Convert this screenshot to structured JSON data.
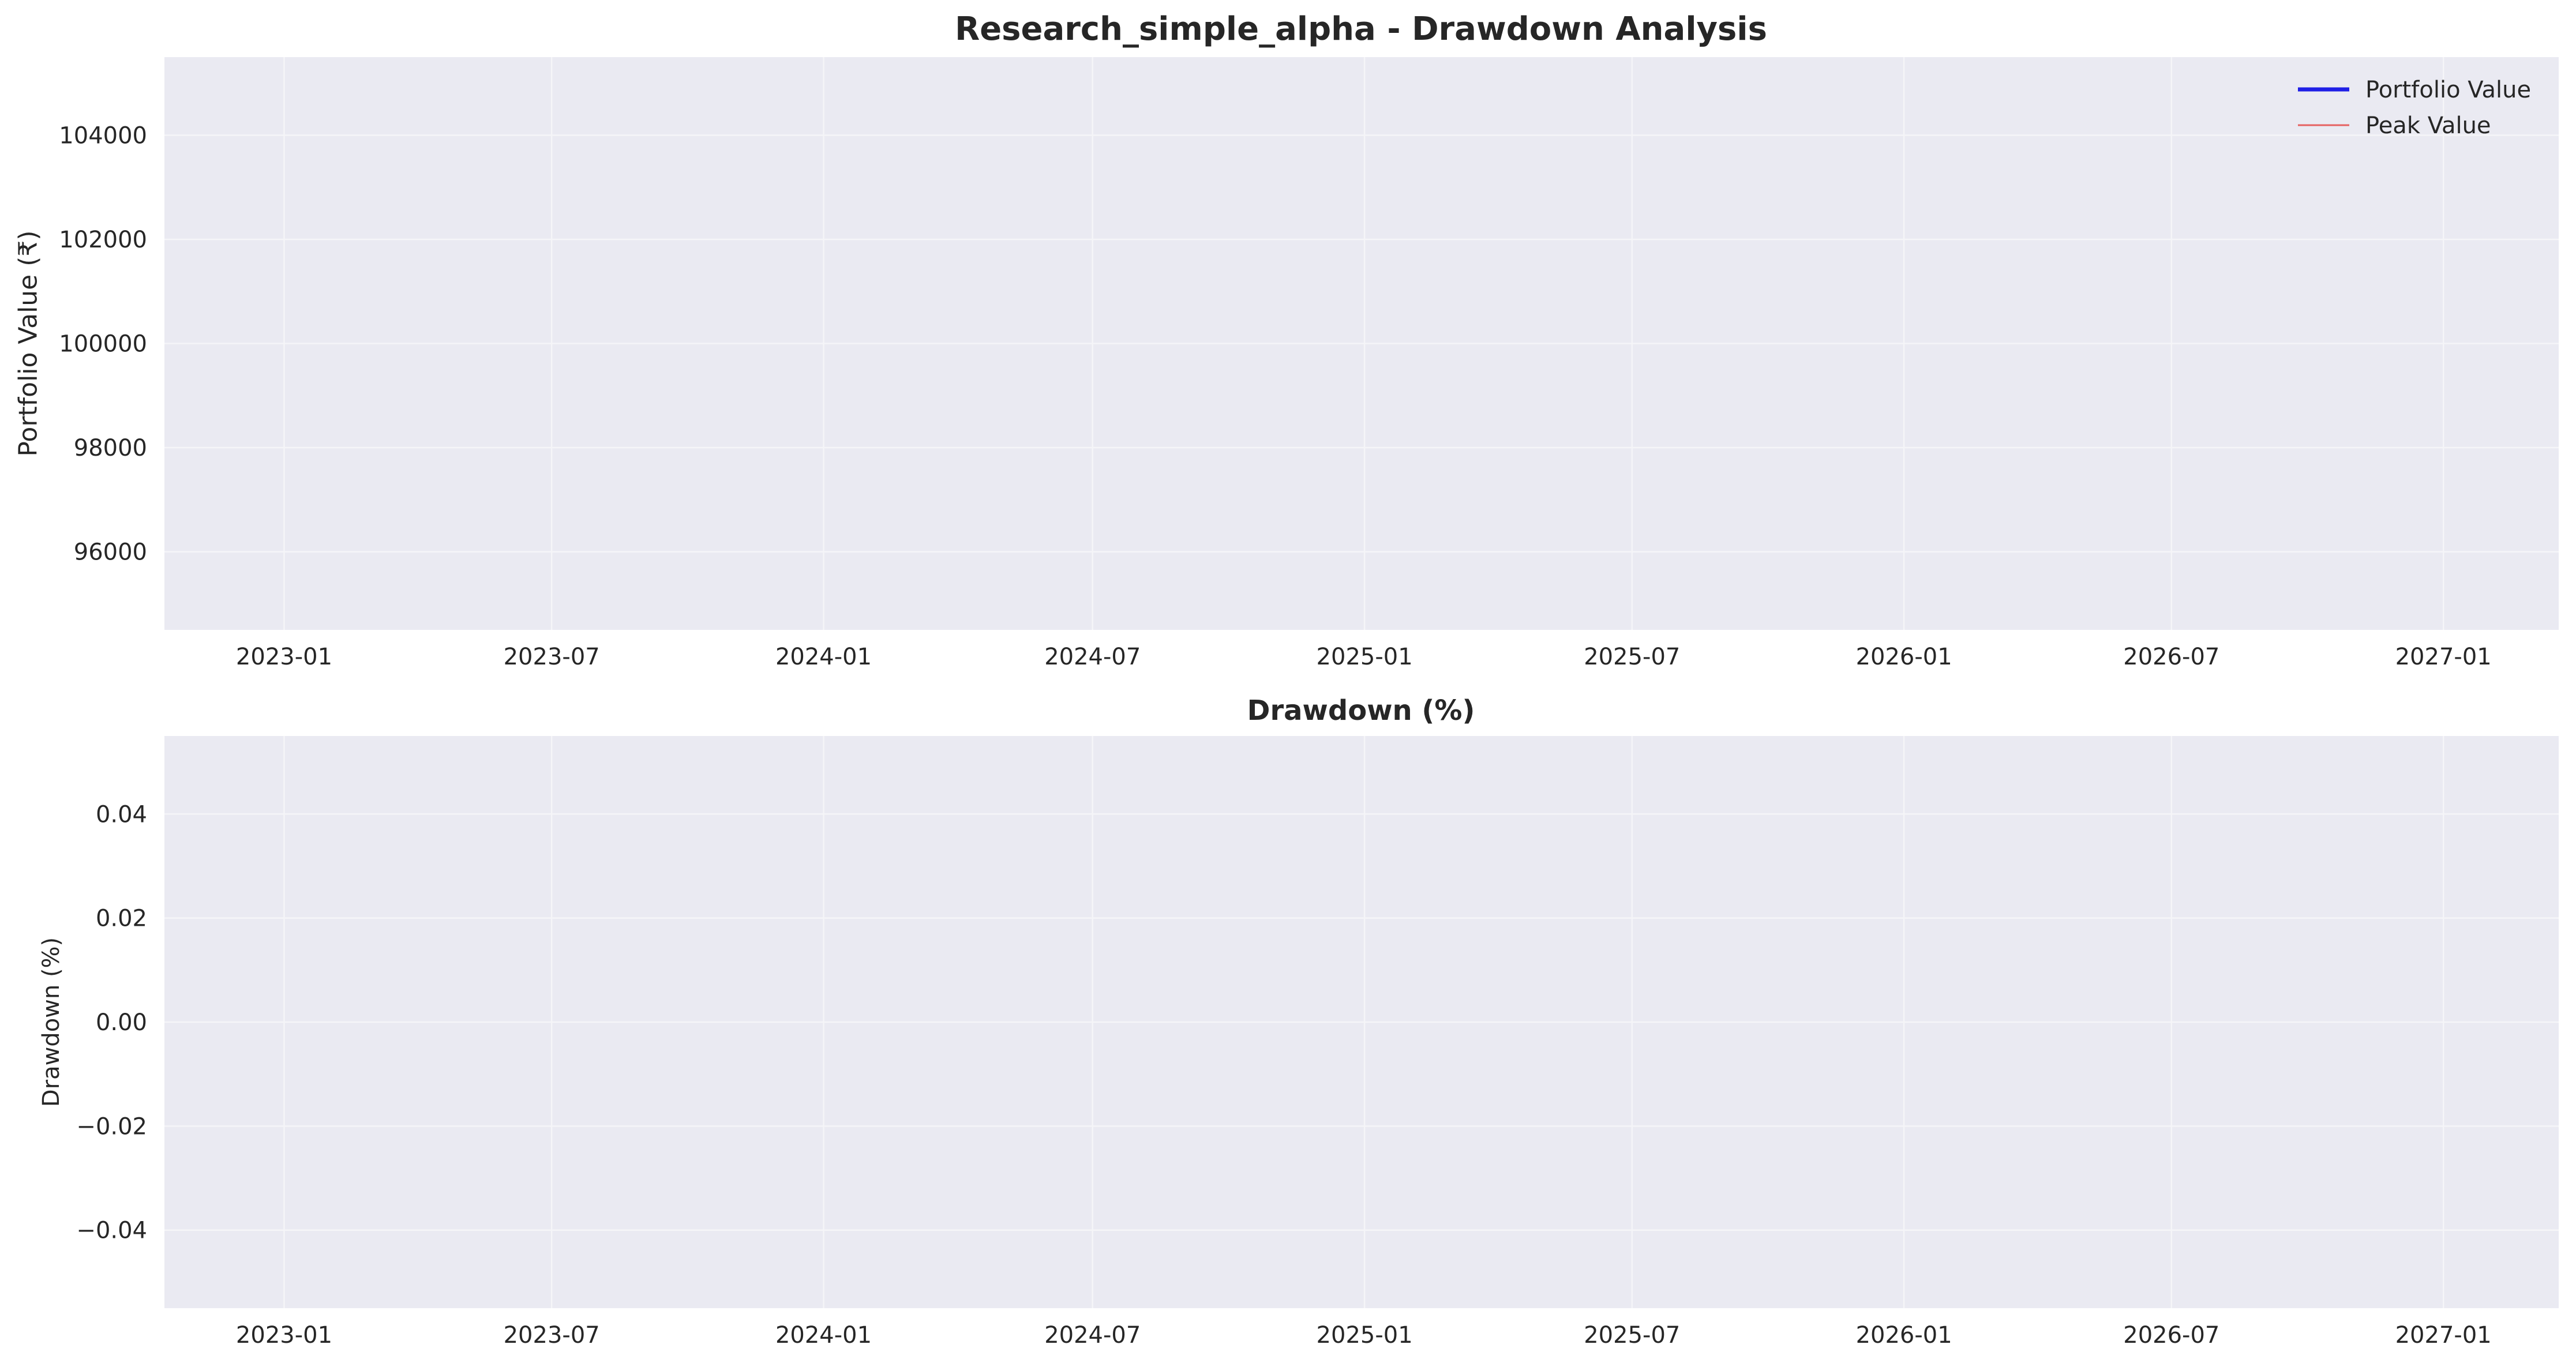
{
  "figure": {
    "title": "Research_simple_alpha - Drawdown Analysis"
  },
  "colors": {
    "plot_background": "#eaeaf2",
    "grid": "#f5f5f8",
    "portfolio_line": "#1f1fe6",
    "peak_line": "#e56060",
    "text": "#262626"
  },
  "chart_data": [
    {
      "type": "line",
      "title": "",
      "xlabel": "",
      "ylabel": "Portfolio Value (₹)",
      "x_axis": "date",
      "xlim": [
        "2022-10-12",
        "2027-03-20"
      ],
      "ylim": [
        94500,
        105500
      ],
      "x_ticks": [
        "2023-01",
        "2023-07",
        "2024-01",
        "2024-07",
        "2025-01",
        "2025-07",
        "2026-01",
        "2026-07",
        "2027-01"
      ],
      "x_tick_dates": [
        "2023-01-01",
        "2023-07-01",
        "2024-01-01",
        "2024-07-01",
        "2025-01-01",
        "2025-07-01",
        "2026-01-01",
        "2026-07-01",
        "2027-01-01"
      ],
      "y_ticks": [
        "96000",
        "98000",
        "100000",
        "102000",
        "104000"
      ],
      "y_tick_values": [
        96000,
        98000,
        100000,
        102000,
        104000
      ],
      "grid": true,
      "legend_position": "top-right",
      "series": [
        {
          "name": "Portfolio Value",
          "values": []
        },
        {
          "name": "Peak Value",
          "values": []
        }
      ]
    },
    {
      "type": "area",
      "title": "Drawdown (%)",
      "xlabel": "",
      "ylabel": "Drawdown (%)",
      "x_axis": "date",
      "xlim": [
        "2022-10-12",
        "2027-03-20"
      ],
      "ylim": [
        -0.055,
        0.055
      ],
      "x_ticks": [
        "2023-01",
        "2023-07",
        "2024-01",
        "2024-07",
        "2025-01",
        "2025-07",
        "2026-01",
        "2026-07",
        "2027-01"
      ],
      "x_tick_dates": [
        "2023-01-01",
        "2023-07-01",
        "2024-01-01",
        "2024-07-01",
        "2025-01-01",
        "2025-07-01",
        "2026-01-01",
        "2026-07-01",
        "2027-01-01"
      ],
      "y_ticks": [
        "−0.04",
        "−0.02",
        "0.00",
        "0.02",
        "0.04"
      ],
      "y_tick_values": [
        -0.04,
        -0.02,
        0.0,
        0.02,
        0.04
      ],
      "grid": true,
      "series": [
        {
          "values": []
        }
      ]
    }
  ]
}
